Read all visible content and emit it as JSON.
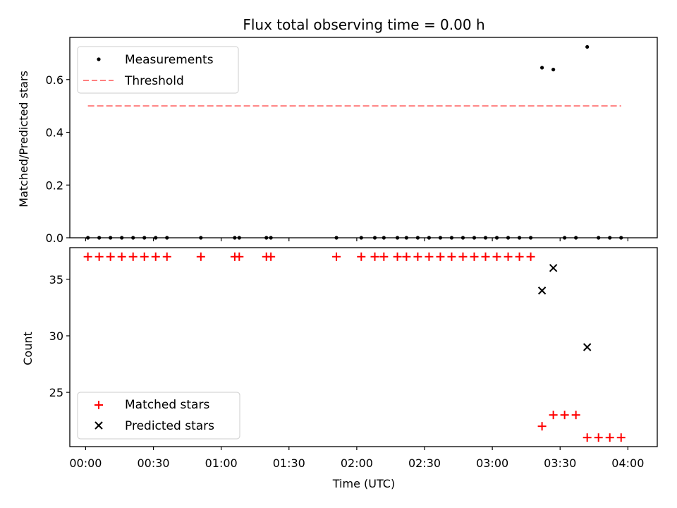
{
  "chart_data": [
    {
      "type": "scatter",
      "title": "Flux total observing time = 0.00 h",
      "xlabel": "",
      "ylabel": "Matched/Predicted stars",
      "xlim": [
        "23:53",
        "04:13"
      ],
      "ylim": [
        0.0,
        0.76
      ],
      "yticks": [
        0.0,
        0.2,
        0.4,
        0.6
      ],
      "ytick_labels": [
        "0.0",
        "0.2",
        "0.4",
        "0.6"
      ],
      "legend_position": "upper left",
      "series": [
        {
          "name": "Measurements",
          "kind": "scatter",
          "color": "#000000",
          "points": [
            [
              "00:01",
              0
            ],
            [
              "00:06",
              0
            ],
            [
              "00:11",
              0
            ],
            [
              "00:16",
              0
            ],
            [
              "00:21",
              0
            ],
            [
              "00:26",
              0
            ],
            [
              "00:31",
              0
            ],
            [
              "00:36",
              0
            ],
            [
              "00:51",
              0
            ],
            [
              "01:06",
              0
            ],
            [
              "01:08",
              0
            ],
            [
              "01:20",
              0
            ],
            [
              "01:22",
              0
            ],
            [
              "01:51",
              0
            ],
            [
              "02:02",
              0
            ],
            [
              "02:08",
              0
            ],
            [
              "02:12",
              0
            ],
            [
              "02:18",
              0
            ],
            [
              "02:22",
              0
            ],
            [
              "02:27",
              0
            ],
            [
              "02:32",
              0
            ],
            [
              "02:37",
              0
            ],
            [
              "02:42",
              0
            ],
            [
              "02:47",
              0
            ],
            [
              "02:52",
              0
            ],
            [
              "02:57",
              0
            ],
            [
              "03:02",
              0
            ],
            [
              "03:07",
              0
            ],
            [
              "03:12",
              0
            ],
            [
              "03:17",
              0
            ],
            [
              "03:22",
              0.645
            ],
            [
              "03:27",
              0.638
            ],
            [
              "03:32",
              0
            ],
            [
              "03:37",
              0
            ],
            [
              "03:42",
              0.724
            ],
            [
              "03:47",
              0
            ],
            [
              "03:52",
              0
            ],
            [
              "03:57",
              0
            ]
          ]
        },
        {
          "name": "Threshold",
          "kind": "line",
          "style": "dashed",
          "color": "#ff7f7f",
          "points": [
            [
              "00:01",
              0.5
            ],
            [
              "03:57",
              0.5
            ]
          ]
        }
      ]
    },
    {
      "type": "scatter",
      "title": "",
      "xlabel": "Time (UTC)",
      "ylabel": "Count",
      "xlim": [
        "23:53",
        "04:13"
      ],
      "ylim": [
        20.2,
        37.8
      ],
      "yticks": [
        25,
        30,
        35
      ],
      "ytick_labels": [
        "25",
        "30",
        "35"
      ],
      "xticks": [
        "00:00",
        "00:30",
        "01:00",
        "01:30",
        "02:00",
        "02:30",
        "03:00",
        "03:30",
        "04:00"
      ],
      "xtick_labels": [
        "00:00",
        "00:30",
        "01:00",
        "01:30",
        "02:00",
        "02:30",
        "03:00",
        "03:30",
        "04:00"
      ],
      "legend_position": "lower left",
      "series": [
        {
          "name": "Matched stars",
          "marker": "+",
          "color": "#ff0000",
          "points": [
            [
              "00:01",
              37
            ],
            [
              "00:06",
              37
            ],
            [
              "00:11",
              37
            ],
            [
              "00:16",
              37
            ],
            [
              "00:21",
              37
            ],
            [
              "00:26",
              37
            ],
            [
              "00:31",
              37
            ],
            [
              "00:36",
              37
            ],
            [
              "00:51",
              37
            ],
            [
              "01:06",
              37
            ],
            [
              "01:08",
              37
            ],
            [
              "01:20",
              37
            ],
            [
              "01:22",
              37
            ],
            [
              "01:51",
              37
            ],
            [
              "02:02",
              37
            ],
            [
              "02:08",
              37
            ],
            [
              "02:12",
              37
            ],
            [
              "02:18",
              37
            ],
            [
              "02:22",
              37
            ],
            [
              "02:27",
              37
            ],
            [
              "02:32",
              37
            ],
            [
              "02:37",
              37
            ],
            [
              "02:42",
              37
            ],
            [
              "02:47",
              37
            ],
            [
              "02:52",
              37
            ],
            [
              "02:57",
              37
            ],
            [
              "03:02",
              37
            ],
            [
              "03:07",
              37
            ],
            [
              "03:12",
              37
            ],
            [
              "03:17",
              37
            ],
            [
              "03:22",
              22
            ],
            [
              "03:27",
              23
            ],
            [
              "03:32",
              23
            ],
            [
              "03:37",
              23
            ],
            [
              "03:42",
              21
            ],
            [
              "03:47",
              21
            ],
            [
              "03:52",
              21
            ],
            [
              "03:57",
              21
            ]
          ]
        },
        {
          "name": "Predicted stars",
          "marker": "x",
          "color": "#000000",
          "points": [
            [
              "03:22",
              34
            ],
            [
              "03:27",
              36
            ],
            [
              "03:42",
              29
            ]
          ]
        }
      ]
    }
  ]
}
